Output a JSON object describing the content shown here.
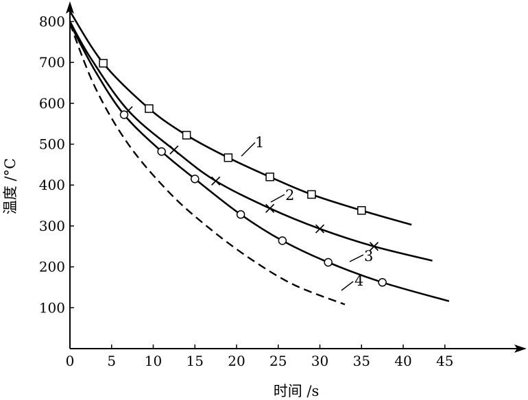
{
  "chart_data": {
    "type": "line",
    "xlabel": "时间 /s",
    "ylabel": "温度 /°C",
    "xlim": [
      0,
      48
    ],
    "ylim": [
      0,
      840
    ],
    "x_ticks": [
      0,
      5,
      10,
      15,
      20,
      25,
      30,
      35,
      40,
      45
    ],
    "y_ticks": [
      100,
      200,
      300,
      400,
      500,
      600,
      700,
      800
    ],
    "grid": false,
    "legend": "none",
    "series": [
      {
        "name": "1",
        "marker": "square",
        "line_style": "solid",
        "x": [
          0,
          4,
          9.5,
          14,
          19,
          24,
          29,
          35,
          41
        ],
        "y": [
          825,
          698,
          587,
          522,
          467,
          420,
          377,
          338,
          303
        ],
        "marker_points": [
          [
            4,
            698
          ],
          [
            9.5,
            587
          ],
          [
            14,
            522
          ],
          [
            19,
            467
          ],
          [
            24,
            420
          ],
          [
            29,
            377
          ],
          [
            35,
            338
          ]
        ]
      },
      {
        "name": "2",
        "marker": "cross",
        "line_style": "solid",
        "x": [
          0,
          2.5,
          7,
          12.5,
          17.5,
          24,
          30,
          36.5,
          43.5
        ],
        "y": [
          800,
          710,
          582,
          486,
          410,
          343,
          293,
          250,
          215
        ],
        "marker_points": [
          [
            7,
            582
          ],
          [
            12.5,
            486
          ],
          [
            17.5,
            410
          ],
          [
            24,
            343
          ],
          [
            30,
            293
          ],
          [
            36.5,
            250
          ]
        ]
      },
      {
        "name": "3",
        "marker": "circle",
        "line_style": "solid",
        "x": [
          0,
          3,
          6.5,
          11,
          15,
          20.5,
          25.5,
          31,
          37.5,
          45.5
        ],
        "y": [
          795,
          680,
          572,
          482,
          415,
          328,
          264,
          211,
          162,
          116
        ],
        "marker_points": [
          [
            6.5,
            572
          ],
          [
            11,
            482
          ],
          [
            15,
            415
          ],
          [
            20.5,
            328
          ],
          [
            25.5,
            264
          ],
          [
            31,
            211
          ],
          [
            37.5,
            162
          ]
        ]
      },
      {
        "name": "4",
        "marker": "none",
        "line_style": "dashed",
        "x": [
          0,
          3,
          7,
          12,
          17,
          22,
          27,
          33
        ],
        "y": [
          795,
          640,
          500,
          380,
          290,
          215,
          155,
          108
        ],
        "marker_points": []
      }
    ]
  }
}
